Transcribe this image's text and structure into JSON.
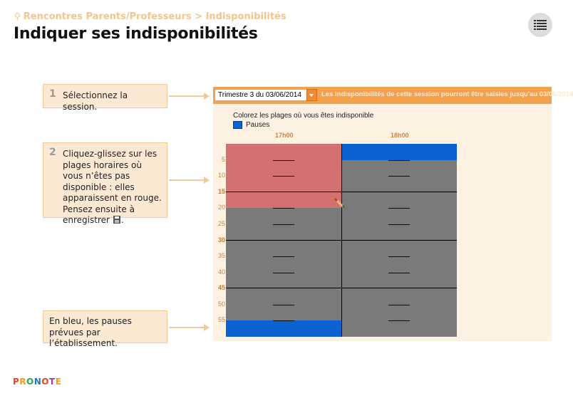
{
  "breadcrumb": "Rencontres Parents/Professeurs > Indisponibilités",
  "page_title": "Indiquer ses indisponibilités",
  "menu_icon": "list-menu-icon",
  "callouts": [
    {
      "num": "1",
      "text": "Sélectionnez la session."
    },
    {
      "num": "2",
      "text_before": "Cliquez-glissez sur les plages horaires où vous n’êtes pas disponible : elles apparaissent en rouge. Pensez ensuite à enregistrer",
      "text_after": "."
    },
    {
      "num": "",
      "text": "En bleu, les pauses prévues par l’établissement."
    }
  ],
  "session": {
    "selected": "Trimestre 3 du 03/06/2014",
    "note": "Les indisponibilités de cette session pourront être saisies jusqu'au 03/06/2014"
  },
  "instructions": "Colorez les plages où vous êtes indisponible",
  "legend_label": "Pauses",
  "hours": [
    "17h00",
    "18h00"
  ],
  "minute_ticks": [
    "5",
    "10",
    "15",
    "20",
    "25",
    "30",
    "35",
    "40",
    "45",
    "50",
    "55"
  ],
  "colors": {
    "unavailable": "#d27270",
    "free": "#7a7a7a",
    "pause": "#0a63d0",
    "accent": "#f5a04b"
  },
  "slots": {
    "slot_minutes": 5,
    "column_17h": {
      "unavailable_minutes": [
        0,
        20
      ],
      "pause_minutes": [
        55,
        60
      ]
    },
    "column_18h": {
      "pause_minutes": [
        0,
        5
      ]
    }
  },
  "logo": "PRONOTE"
}
